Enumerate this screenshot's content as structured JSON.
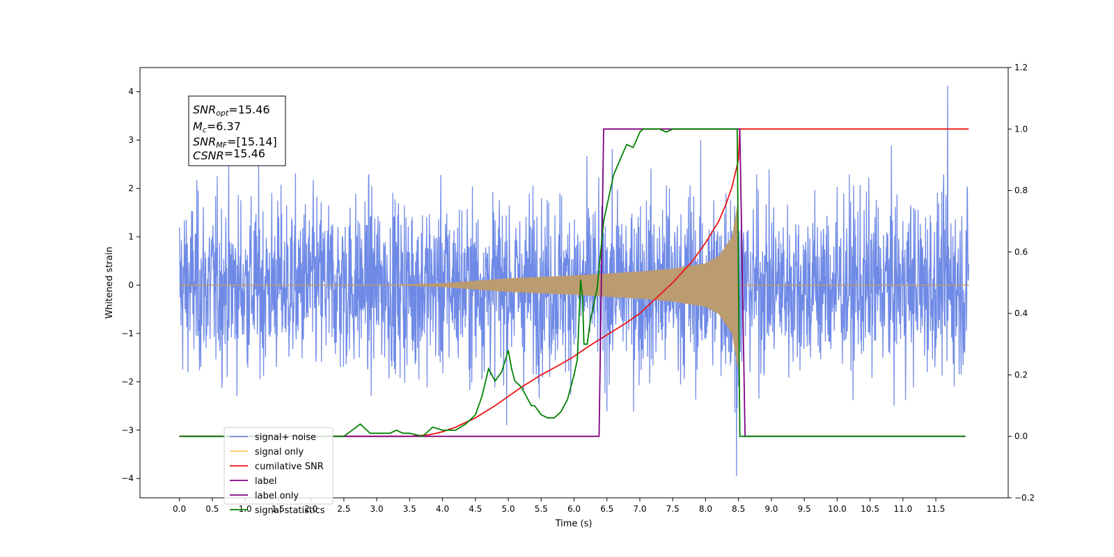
{
  "chart_data": {
    "type": "line",
    "xlabel": "Time (s)",
    "ylabel": "Whitened strain",
    "xlim": [
      -0.6,
      12.6
    ],
    "ylim": [
      -4.4,
      4.5
    ],
    "y2lim": [
      -0.2,
      1.2
    ],
    "x_ticks": [
      "0.0",
      "0.5",
      "1.0",
      "1.5",
      "2.0",
      "2.5",
      "3.0",
      "3.5",
      "4.0",
      "4.5",
      "5.0",
      "5.5",
      "6.0",
      "6.5",
      "7.0",
      "7.5",
      "8.0",
      "8.5",
      "9.0",
      "9.5",
      "10.0",
      "10.5",
      "11.0",
      "11.5"
    ],
    "x_tick_values": [
      0.0,
      0.5,
      1.0,
      1.5,
      2.0,
      2.5,
      3.0,
      3.5,
      4.0,
      4.5,
      5.0,
      5.5,
      6.0,
      6.5,
      7.0,
      7.5,
      8.0,
      8.5,
      9.0,
      9.5,
      10.0,
      10.5,
      11.0,
      11.5
    ],
    "y_ticks": [
      -4,
      -3,
      -2,
      -1,
      0,
      1,
      2,
      3,
      4
    ],
    "y2_ticks": [
      "−0.2",
      "0.0",
      "0.2",
      "0.4",
      "0.6",
      "0.8",
      "1.0",
      "1.2"
    ],
    "y2_tick_values": [
      -0.2,
      0.0,
      0.2,
      0.4,
      0.6,
      0.8,
      1.0,
      1.2
    ],
    "grid": false,
    "legend_position": "lower-left",
    "series": [
      {
        "name": "signal+ noise",
        "axis": "left",
        "color": "#6f8ae6",
        "x_range": [
          0.0,
          12.0
        ],
        "noise_std": 0.9,
        "peak": 4.12,
        "trough": -3.95
      },
      {
        "name": "signal only",
        "axis": "left",
        "color": "#ffcc66",
        "overlap_color": "#bb9b70",
        "x_range": [
          0.0,
          12.0
        ],
        "chirp_end": 8.5,
        "amplitude": {
          "x": [
            0.0,
            3.0,
            4.0,
            5.0,
            6.0,
            6.5,
            7.0,
            7.5,
            8.0,
            8.2,
            8.4,
            8.5
          ],
          "y": [
            0.0,
            0.0,
            0.04,
            0.14,
            0.2,
            0.24,
            0.28,
            0.34,
            0.45,
            0.6,
            1.0,
            1.8
          ]
        }
      },
      {
        "name": "cumilative SNR",
        "axis": "right",
        "color": "#ee1111",
        "x": [
          0.0,
          3.5,
          3.8,
          4.0,
          4.2,
          4.5,
          4.8,
          5.0,
          5.2,
          5.5,
          5.8,
          6.0,
          6.2,
          6.5,
          6.8,
          7.0,
          7.2,
          7.5,
          7.8,
          8.0,
          8.2,
          8.3,
          8.4,
          8.5,
          8.52,
          12.0
        ],
        "y": [
          0.0,
          0.0,
          0.005,
          0.015,
          0.03,
          0.06,
          0.1,
          0.13,
          0.16,
          0.2,
          0.235,
          0.26,
          0.29,
          0.33,
          0.37,
          0.4,
          0.44,
          0.5,
          0.57,
          0.63,
          0.7,
          0.75,
          0.81,
          0.9,
          1.0,
          1.0
        ]
      },
      {
        "name": "label",
        "axis": "right",
        "color": "#800080",
        "x": [
          0.0,
          6.38,
          6.45,
          8.52,
          8.6,
          11.95
        ],
        "y": [
          0.0,
          0.0,
          1.0,
          1.0,
          0.0,
          0.0
        ]
      },
      {
        "name": "label only",
        "axis": "right",
        "color": "#800080",
        "hidden": true
      },
      {
        "name": "signal statistics",
        "axis": "right",
        "color": "#008000",
        "x": [
          0.0,
          2.5,
          2.75,
          2.8,
          2.9,
          3.0,
          3.2,
          3.3,
          3.4,
          3.5,
          3.7,
          3.85,
          4.0,
          4.2,
          4.35,
          4.5,
          4.6,
          4.7,
          4.8,
          4.9,
          5.0,
          5.05,
          5.1,
          5.2,
          5.35,
          5.4,
          5.5,
          5.6,
          5.7,
          5.8,
          5.9,
          6.0,
          6.05,
          6.1,
          6.13,
          6.15,
          6.2,
          6.25,
          6.35,
          6.45,
          6.5,
          6.6,
          6.7,
          6.8,
          6.9,
          7.0,
          7.05,
          7.1,
          7.3,
          7.4,
          7.5,
          7.7,
          8.0,
          8.3,
          8.48,
          8.52,
          8.6,
          11.95
        ],
        "y": [
          0.0,
          0.0,
          0.04,
          0.03,
          0.01,
          0.01,
          0.01,
          0.02,
          0.01,
          0.01,
          0.0,
          0.03,
          0.02,
          0.02,
          0.04,
          0.07,
          0.13,
          0.22,
          0.18,
          0.21,
          0.28,
          0.22,
          0.18,
          0.16,
          0.1,
          0.1,
          0.07,
          0.06,
          0.06,
          0.08,
          0.12,
          0.2,
          0.25,
          0.51,
          0.45,
          0.3,
          0.3,
          0.38,
          0.48,
          0.7,
          0.75,
          0.85,
          0.9,
          0.95,
          0.94,
          0.99,
          1.0,
          1.0,
          1.0,
          0.99,
          1.0,
          1.0,
          1.0,
          1.0,
          1.0,
          0.0,
          0.0,
          0.0
        ]
      }
    ],
    "annotation_lines": [
      {
        "var": "SNR",
        "sub": "opt",
        "rest": "=15.46"
      },
      {
        "var": "M",
        "sub": "c",
        "rest": "=6.37"
      },
      {
        "var": "SNR",
        "sub": "MF",
        "rest": "=[15.14]"
      },
      {
        "var": "CSNR",
        "sub": "",
        "rest": "=15.46"
      }
    ]
  }
}
